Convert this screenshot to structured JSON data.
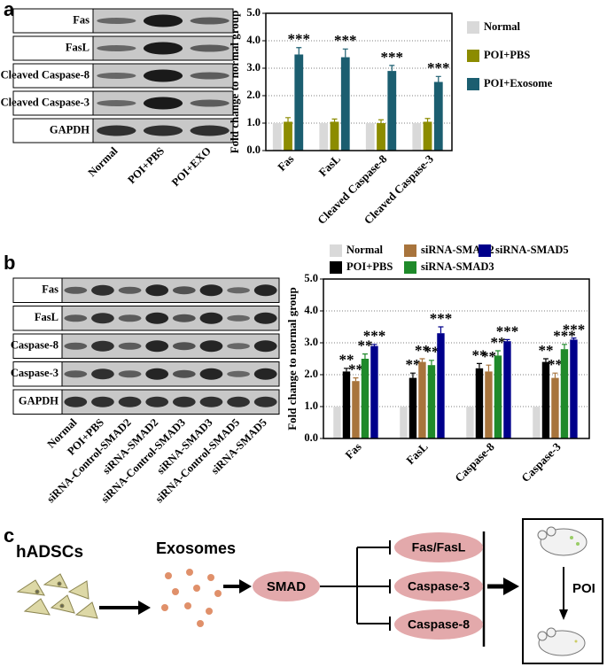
{
  "panel_labels": [
    "a",
    "b",
    "c"
  ],
  "blot_a": {
    "rows": [
      "Fas",
      "FasL",
      "Cleaved Caspase-8",
      "Cleaved Caspase-3",
      "GAPDH"
    ],
    "lanes": [
      "Normal",
      "POI+PBS",
      "POI+EXO"
    ]
  },
  "blot_b": {
    "rows": [
      "Fas",
      "FasL",
      "Caspase-8",
      "Caspase-3",
      "GAPDH"
    ],
    "lanes": [
      "Normal",
      "POI+PBS",
      "siRNA-Control-SMAD2",
      "siRNA-SMAD2",
      "siRNA-Control-SMAD3",
      "siRNA-SMAD3",
      "siRNA-Control-SMAD5",
      "siRNA-SMAD5"
    ]
  },
  "chart_data": [
    {
      "type": "bar",
      "y_label": "Fold change to normal group",
      "categories": [
        "Fas",
        "FasL",
        "Cleaved Caspase-8",
        "Cleaved Caspase-3"
      ],
      "series": [
        {
          "name": "Normal",
          "color": "#d9d9d9",
          "values": [
            1,
            1,
            1,
            1
          ],
          "errors": [
            0,
            0,
            0,
            0
          ]
        },
        {
          "name": "POI+PBS",
          "color": "#8c8c00",
          "values": [
            1.05,
            1.05,
            1.0,
            1.05
          ],
          "errors": [
            0.15,
            0.1,
            0.12,
            0.12
          ]
        },
        {
          "name": "POI+Exosome",
          "color": "#1b5e70",
          "values": [
            3.5,
            3.4,
            2.9,
            2.5
          ],
          "errors": [
            0.25,
            0.3,
            0.2,
            0.2
          ],
          "annotations": [
            "***",
            "***",
            "***",
            "***"
          ]
        }
      ],
      "ylim": [
        0,
        5
      ],
      "yticks": [
        {
          "value": 0,
          "label": "0.0"
        },
        {
          "value": 1,
          "label": "1.0"
        },
        {
          "value": 2,
          "label": "2.0"
        },
        {
          "value": 3,
          "label": "3.0"
        },
        {
          "value": 4,
          "label": "4.0"
        },
        {
          "value": 5,
          "label": "5.0"
        }
      ],
      "grid": true,
      "legend": "right"
    },
    {
      "type": "bar",
      "y_label": "Fold change to normal group",
      "categories": [
        "Fas",
        "FasL",
        "Caspase-8",
        "Caspase-3"
      ],
      "series": [
        {
          "name": "Normal",
          "color": "#d9d9d9",
          "values": [
            1,
            1,
            1,
            1
          ],
          "errors": [
            0,
            0,
            0,
            0
          ]
        },
        {
          "name": "POI+PBS",
          "color": "#000000",
          "values": [
            2.1,
            1.9,
            2.2,
            2.4
          ],
          "errors": [
            0.1,
            0.15,
            0.15,
            0.1
          ],
          "annotations": [
            "**",
            "**",
            "**",
            "**"
          ]
        },
        {
          "name": "siRNA-SMAD2",
          "color": "#a8743c",
          "values": [
            1.8,
            2.4,
            2.1,
            1.9
          ],
          "errors": [
            0.1,
            0.1,
            0.2,
            0.15
          ],
          "annotations": [
            "**",
            "**",
            "**",
            "**"
          ]
        },
        {
          "name": "siRNA-SMAD3",
          "color": "#1f8a2a",
          "values": [
            2.5,
            2.3,
            2.6,
            2.8
          ],
          "errors": [
            0.15,
            0.15,
            0.15,
            0.15
          ],
          "annotations": [
            "**",
            "**",
            "**",
            "***"
          ]
        },
        {
          "name": "siRNA-SMAD5",
          "color": "#00008b",
          "values": [
            2.9,
            3.3,
            3.05,
            3.1
          ],
          "errors": [
            0.05,
            0.2,
            0.05,
            0.05
          ],
          "annotations": [
            "***",
            "***",
            "***",
            "***"
          ]
        }
      ],
      "ylim": [
        0,
        5
      ],
      "yticks": [
        {
          "value": 0,
          "label": "0.0"
        },
        {
          "value": 1,
          "label": "1.0"
        },
        {
          "value": 2,
          "label": "2.0"
        },
        {
          "value": 3,
          "label": "3.0"
        },
        {
          "value": 4,
          "label": "4.0"
        },
        {
          "value": 5,
          "label": "5.0"
        }
      ],
      "grid": true,
      "legend": "top"
    }
  ],
  "diagram": {
    "source": "hADSCs",
    "vesicles": "Exosomes",
    "hub": "SMAD",
    "targets": [
      "Fas/FasL",
      "Caspase-3",
      "Caspase-8"
    ],
    "outcome": "POI"
  }
}
